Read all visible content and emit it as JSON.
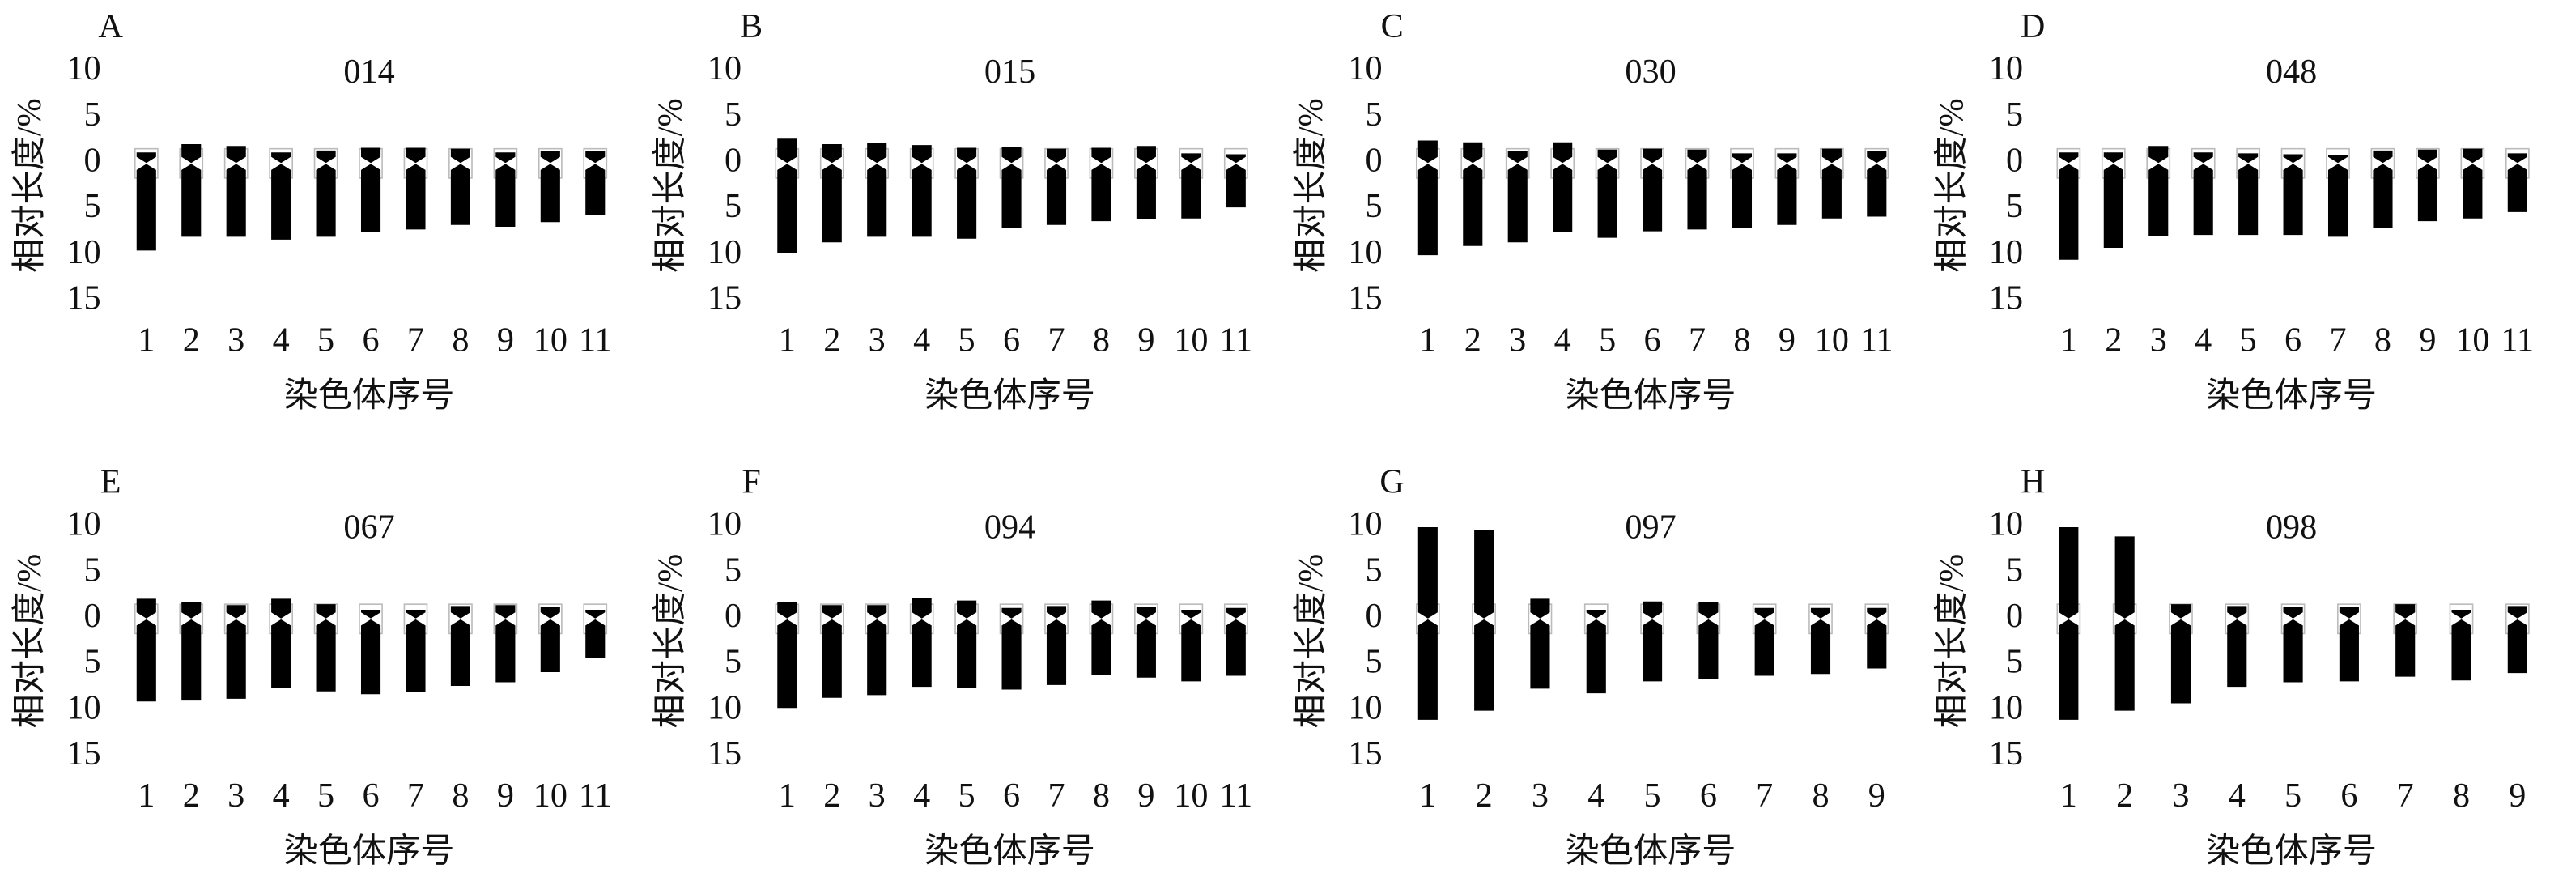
{
  "chart_data": [
    {
      "type": "bar",
      "panel": "A",
      "title": "014",
      "xlabel": "染色体序号",
      "ylabel": "相对长度/%",
      "categories": [
        1,
        2,
        3,
        4,
        5,
        6,
        7,
        8,
        9,
        10,
        11
      ],
      "series": [
        {
          "color": "#000000",
          "values": [
            1.2,
            2.1,
            1.9,
            1.2,
            1.4,
            1.7,
            1.7,
            1.6,
            1.2,
            1.3,
            1.3
          ]
        },
        {
          "color": "#000000",
          "values": [
            -9.5,
            -8,
            -8,
            -8.3,
            -8,
            -7.5,
            -7.2,
            -6.7,
            -6.9,
            -6.4,
            -5.6
          ]
        }
      ],
      "ylim": [
        -15,
        10
      ],
      "yticks": [
        {
          "value": -15,
          "label": "15"
        },
        {
          "value": -10,
          "label": "10"
        },
        {
          "value": -5,
          "label": "5"
        },
        0,
        5,
        10
      ]
    },
    {
      "type": "bar",
      "panel": "B",
      "title": "015",
      "xlabel": "染色体序号",
      "ylabel": "相对长度/%",
      "categories": [
        1,
        2,
        3,
        4,
        5,
        6,
        7,
        8,
        9,
        10,
        11
      ],
      "series": [
        {
          "color": "#000000",
          "values": [
            2.7,
            2.1,
            2.2,
            2,
            1.7,
            1.8,
            1.6,
            1.7,
            1.9,
            1.1,
            1
          ]
        },
        {
          "color": "#000000",
          "values": [
            -9.8,
            -8.6,
            -8,
            -8,
            -8.2,
            -7,
            -6.7,
            -6.3,
            -6.1,
            -6,
            -4.8
          ]
        }
      ],
      "ylim": [
        -15,
        10
      ],
      "yticks": [
        {
          "value": -15,
          "label": "15"
        },
        {
          "value": -10,
          "label": "10"
        },
        {
          "value": -5,
          "label": "5"
        },
        0,
        5,
        10
      ]
    },
    {
      "type": "bar",
      "panel": "C",
      "title": "030",
      "xlabel": "染色体序号",
      "ylabel": "相对长度/%",
      "categories": [
        1,
        2,
        3,
        4,
        5,
        6,
        7,
        8,
        9,
        10,
        11
      ],
      "series": [
        {
          "color": "#000000",
          "values": [
            2.5,
            2.3,
            1.3,
            2.3,
            1.5,
            1.6,
            1.5,
            1.1,
            1.1,
            1.6,
            1.3
          ]
        },
        {
          "color": "#000000",
          "values": [
            -10,
            -9,
            -8.6,
            -7.5,
            -8.1,
            -7.4,
            -7.2,
            -7,
            -6.7,
            -6,
            -5.8
          ]
        }
      ],
      "ylim": [
        -15,
        10
      ],
      "yticks": [
        {
          "value": -15,
          "label": "15"
        },
        {
          "value": -10,
          "label": "10"
        },
        {
          "value": -5,
          "label": "5"
        },
        0,
        5,
        10
      ]
    },
    {
      "type": "bar",
      "panel": "D",
      "title": "048",
      "xlabel": "染色体序号",
      "ylabel": "相对长度/%",
      "categories": [
        1,
        2,
        3,
        4,
        5,
        6,
        7,
        8,
        9,
        10,
        11
      ],
      "series": [
        {
          "color": "#000000",
          "values": [
            1.2,
            1.2,
            1.9,
            1.2,
            1.1,
            1,
            0.9,
            1.4,
            1.5,
            1.6,
            1.1
          ]
        },
        {
          "color": "#000000",
          "values": [
            -10.5,
            -9.2,
            -7.9,
            -7.8,
            -7.8,
            -7.8,
            -8,
            -7,
            -6.3,
            -6,
            -5.3
          ]
        }
      ],
      "ylim": [
        -15,
        10
      ],
      "yticks": [
        {
          "value": -15,
          "label": "15"
        },
        {
          "value": -10,
          "label": "10"
        },
        {
          "value": -5,
          "label": "5"
        },
        0,
        5,
        10
      ]
    },
    {
      "type": "bar",
      "panel": "E",
      "title": "067",
      "xlabel": "染色体序号",
      "ylabel": "相对长度/%",
      "categories": [
        1,
        2,
        3,
        4,
        5,
        6,
        7,
        8,
        9,
        10,
        11
      ],
      "series": [
        {
          "color": "#000000",
          "values": [
            2.2,
            1.8,
            1.5,
            2.2,
            1.6,
            1,
            1,
            1.4,
            1.5,
            1.3,
            1
          ]
        },
        {
          "color": "#000000",
          "values": [
            -9,
            -8.9,
            -8.7,
            -7.5,
            -7.9,
            -8.2,
            -8,
            -7.3,
            -6.9,
            -5.8,
            -4.3
          ]
        }
      ],
      "ylim": [
        -15,
        10
      ],
      "yticks": [
        {
          "value": -15,
          "label": "15"
        },
        {
          "value": -10,
          "label": "10"
        },
        {
          "value": -5,
          "label": "5"
        },
        0,
        5,
        10
      ]
    },
    {
      "type": "bar",
      "panel": "F",
      "title": "094",
      "xlabel": "染色体序号",
      "ylabel": "相对长度/%",
      "categories": [
        1,
        2,
        3,
        4,
        5,
        6,
        7,
        8,
        9,
        10,
        11
      ],
      "series": [
        {
          "color": "#000000",
          "values": [
            1.8,
            1.5,
            1.5,
            2.3,
            2,
            1.2,
            1.4,
            2,
            1.3,
            1,
            1.2
          ]
        },
        {
          "color": "#000000",
          "values": [
            -9.7,
            -8.6,
            -8.3,
            -7.4,
            -7.5,
            -7.7,
            -7.2,
            -6.1,
            -6.4,
            -6.8,
            -6.2
          ]
        }
      ],
      "ylim": [
        -15,
        10
      ],
      "yticks": [
        {
          "value": -15,
          "label": "15"
        },
        {
          "value": -10,
          "label": "10"
        },
        {
          "value": -5,
          "label": "5"
        },
        0,
        5,
        10
      ]
    },
    {
      "type": "bar",
      "panel": "G",
      "title": "097",
      "xlabel": "染色体序号",
      "ylabel": "相对长度/%",
      "categories": [
        1,
        2,
        3,
        4,
        5,
        6,
        7,
        8,
        9
      ],
      "series": [
        {
          "color": "#000000",
          "values": [
            10,
            9.7,
            2.2,
            1,
            1.9,
            1.8,
            1.2,
            1.2,
            1.2
          ]
        },
        {
          "color": "#000000",
          "values": [
            -11,
            -10,
            -7.6,
            -8.1,
            -6.8,
            -6.5,
            -6.2,
            -6,
            -5.4
          ]
        }
      ],
      "ylim": [
        -15,
        10
      ],
      "yticks": [
        {
          "value": -15,
          "label": "15"
        },
        {
          "value": -10,
          "label": "10"
        },
        {
          "value": -5,
          "label": "5"
        },
        0,
        5,
        10
      ]
    },
    {
      "type": "bar",
      "panel": "H",
      "title": "098",
      "xlabel": "染色体序号",
      "ylabel": "相对长度/%",
      "categories": [
        1,
        2,
        3,
        4,
        5,
        6,
        7,
        8,
        9
      ],
      "series": [
        {
          "color": "#000000",
          "values": [
            10,
            9,
            1.6,
            1.4,
            1.3,
            1.3,
            1.6,
            1,
            1.4
          ]
        },
        {
          "color": "#000000",
          "values": [
            -11,
            -10,
            -9.2,
            -7.4,
            -6.9,
            -6.8,
            -6.3,
            -6.7,
            -5.9
          ]
        }
      ],
      "ylim": [
        -15,
        10
      ],
      "yticks": [
        {
          "value": -15,
          "label": "15"
        },
        {
          "value": -10,
          "label": "10"
        },
        {
          "value": -5,
          "label": "5"
        },
        0,
        5,
        10
      ]
    }
  ]
}
